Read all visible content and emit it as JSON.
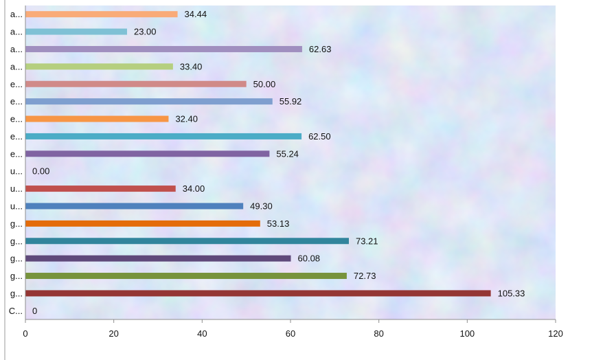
{
  "chart_data": {
    "type": "bar",
    "orientation": "horizontal",
    "categories": [
      "C...",
      "g...",
      "g...",
      "g...",
      "g...",
      "g...",
      "u...",
      "u...",
      "u...",
      "e...",
      "e...",
      "e...",
      "e...",
      "e...",
      "a...",
      "a...",
      "a...",
      "a..."
    ],
    "values": [
      0,
      105.33,
      72.73,
      60.08,
      73.21,
      53.13,
      49.3,
      34.0,
      0.0,
      55.24,
      62.5,
      32.4,
      55.92,
      50.0,
      33.4,
      62.63,
      23.0,
      34.44
    ],
    "data_labels": [
      "0",
      "105.33",
      "72.73",
      "60.08",
      "73.21",
      "53.13",
      "49.30",
      "34.00",
      "0.00",
      "55.24",
      "62.50",
      "32.40",
      "55.92",
      "50.00",
      "33.40",
      "62.63",
      "23.00",
      "34.44"
    ],
    "bar_colors": [
      "#4f81bd",
      "#943634",
      "#77933c",
      "#5f497a",
      "#31859c",
      "#e46c0a",
      "#4f81bd",
      "#c0504d",
      "#9bbb59",
      "#8064a2",
      "#4bacc6",
      "#f79646",
      "#7f9fcf",
      "#d08a88",
      "#b5cf7f",
      "#a08fbf",
      "#7fc1d5",
      "#f9ab78"
    ],
    "xlim": [
      0,
      120
    ],
    "x_ticks": [
      "0",
      "20",
      "40",
      "60",
      "80",
      "100",
      "120"
    ],
    "title": "",
    "xlabel": "",
    "ylabel": "",
    "grid": false,
    "legend": "none"
  }
}
